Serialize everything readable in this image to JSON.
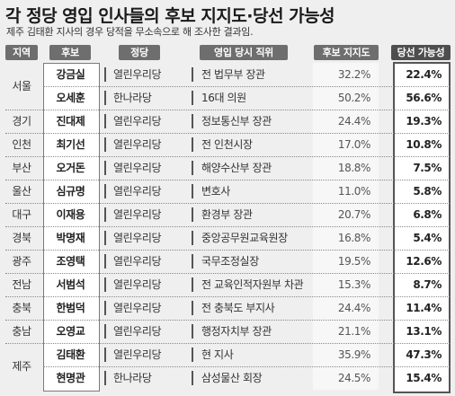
{
  "title": "각 정당 영입 인사들의 후보 지지도·당선 가능성",
  "subtitle": "제주 김태환 지사의 경우 당적을 무소속으로 해 조사한 결과임.",
  "headers": {
    "region": "지역",
    "candidate": "후보",
    "party": "정당",
    "position": "영입 당시 직위",
    "support": "후보 지지도",
    "win": "당선 가능성"
  },
  "rows": [
    {
      "region": "서울",
      "name": "강금실",
      "party": "열린우리당",
      "position": "전 법무부 장관",
      "support": "32.2%",
      "win": "22.4%"
    },
    {
      "region": "",
      "name": "오세훈",
      "party": "한나라당",
      "position": "16대 의원",
      "support": "50.2%",
      "win": "56.6%"
    },
    {
      "region": "경기",
      "name": "진대제",
      "party": "열린우리당",
      "position": "정보통신부 장관",
      "support": "24.4%",
      "win": "19.3%"
    },
    {
      "region": "인천",
      "name": "최기선",
      "party": "열린우리당",
      "position": "전 인천시장",
      "support": "17.0%",
      "win": "10.8%"
    },
    {
      "region": "부산",
      "name": "오거돈",
      "party": "열린우리당",
      "position": "해양수산부 장관",
      "support": "18.8%",
      "win": "7.5%"
    },
    {
      "region": "울산",
      "name": "심규명",
      "party": "열린우리당",
      "position": "변호사",
      "support": "11.0%",
      "win": "5.8%"
    },
    {
      "region": "대구",
      "name": "이재용",
      "party": "열린우리당",
      "position": "환경부 장관",
      "support": "20.7%",
      "win": "6.8%"
    },
    {
      "region": "경북",
      "name": "박명재",
      "party": "열린우리당",
      "position": "중앙공무원교육원장",
      "support": "16.8%",
      "win": "5.4%"
    },
    {
      "region": "광주",
      "name": "조영택",
      "party": "열린우리당",
      "position": "국무조정실장",
      "support": "19.5%",
      "win": "12.6%"
    },
    {
      "region": "전남",
      "name": "서범석",
      "party": "열린우리당",
      "position": "전 교육인적자원부 차관",
      "support": "15.3%",
      "win": "8.7%"
    },
    {
      "region": "충북",
      "name": "한범덕",
      "party": "열린우리당",
      "position": "전 충북도 부지사",
      "support": "24.4%",
      "win": "11.4%"
    },
    {
      "region": "충남",
      "name": "오영교",
      "party": "열린우리당",
      "position": "행정자치부 장관",
      "support": "21.1%",
      "win": "13.1%"
    },
    {
      "region": "제주",
      "name": "김태환",
      "party": "열린우리당",
      "position": "현 지사",
      "support": "35.9%",
      "win": "47.3%"
    },
    {
      "region": "",
      "name": "현명관",
      "party": "한나라당",
      "position": "삼성물산 회장",
      "support": "24.5%",
      "win": "15.4%"
    }
  ]
}
